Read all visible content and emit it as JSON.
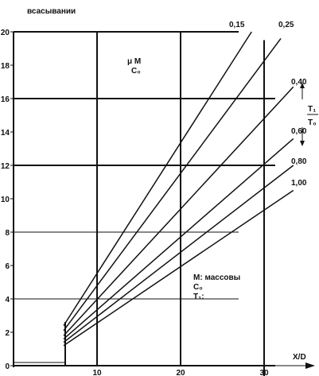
{
  "chart_data": {
    "type": "line",
    "ylabel": "всасывании",
    "xlabel": "X/D",
    "xlim": [
      0,
      33
    ],
    "ylim": [
      0,
      20
    ],
    "x_ticks": [
      "10",
      "20",
      "30"
    ],
    "y_ticks": [
      "0",
      "2",
      "4",
      "6",
      "8",
      "10",
      "12",
      "14",
      "16",
      "18",
      "20"
    ],
    "inner_label_top": [
      "μ M",
      "C₀"
    ],
    "ratio_label": [
      "T₁",
      "T₀"
    ],
    "notes": [
      "M: массовы",
      "C₀",
      "T₁:"
    ],
    "watermark": "",
    "series": [
      {
        "name": "0,15",
        "x": [
          6,
          28.5
        ],
        "y": [
          2.4,
          20
        ]
      },
      {
        "name": "0,25",
        "x": [
          6,
          32
        ],
        "y": [
          2.1,
          19.6
        ]
      },
      {
        "name": "0,40",
        "x": [
          6,
          33.5
        ],
        "y": [
          1.8,
          16.7
        ]
      },
      {
        "name": "0,60",
        "x": [
          6,
          33.5
        ],
        "y": [
          1.6,
          13.6
        ]
      },
      {
        "name": "0,80",
        "x": [
          6,
          33.5
        ],
        "y": [
          1.4,
          12.0
        ]
      },
      {
        "name": "1,00",
        "x": [
          6,
          33.5
        ],
        "y": [
          1.2,
          10.5
        ]
      }
    ],
    "grid": true
  }
}
